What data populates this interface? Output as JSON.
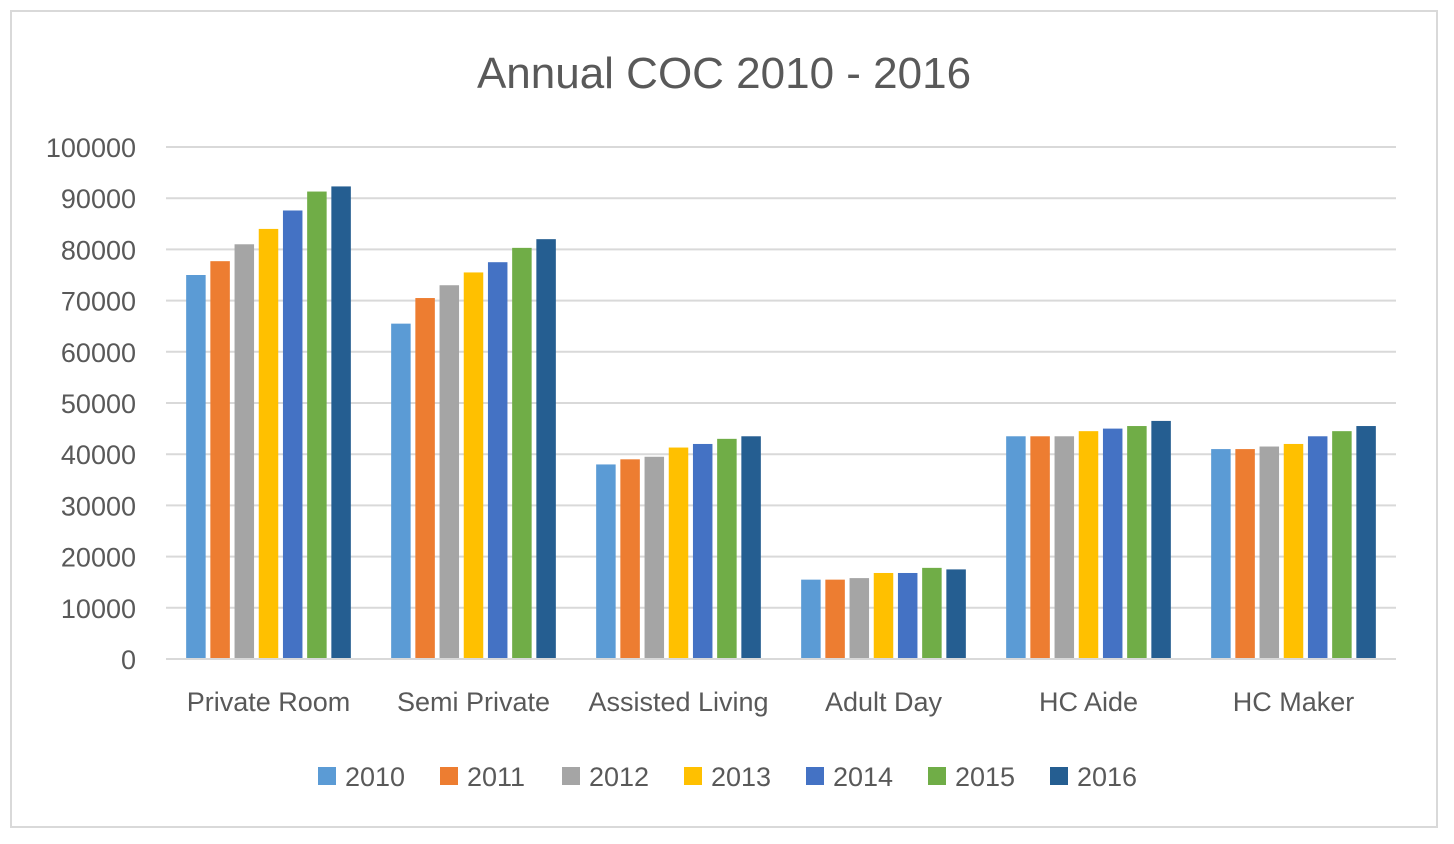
{
  "chart_data": {
    "type": "bar",
    "title": "Annual COC 2010 - 2016",
    "xlabel": "",
    "ylabel": "",
    "ylim": [
      0,
      100000
    ],
    "yticks": [
      0,
      10000,
      20000,
      30000,
      40000,
      50000,
      60000,
      70000,
      80000,
      90000,
      100000
    ],
    "grid": true,
    "legend_position": "bottom",
    "categories": [
      "Private Room",
      "Semi Private",
      "Assisted Living",
      "Adult Day",
      "HC Aide",
      "HC Maker"
    ],
    "series": [
      {
        "name": "2010",
        "color": "#5b9bd5",
        "values": [
          75000,
          65500,
          38000,
          15500,
          43500,
          41000
        ]
      },
      {
        "name": "2011",
        "color": "#ed7d31",
        "values": [
          77700,
          70500,
          39000,
          15500,
          43500,
          41000
        ]
      },
      {
        "name": "2012",
        "color": "#a5a5a5",
        "values": [
          81000,
          73000,
          39500,
          15800,
          43500,
          41500
        ]
      },
      {
        "name": "2013",
        "color": "#ffc000",
        "values": [
          84000,
          75500,
          41300,
          16800,
          44500,
          42000
        ]
      },
      {
        "name": "2014",
        "color": "#4472c4",
        "values": [
          87600,
          77500,
          42000,
          16800,
          45000,
          43500
        ]
      },
      {
        "name": "2015",
        "color": "#70ad47",
        "values": [
          91300,
          80300,
          43000,
          17800,
          45500,
          44500
        ]
      },
      {
        "name": "2016",
        "color": "#255e91",
        "values": [
          92300,
          82000,
          43500,
          17500,
          46500,
          45500
        ]
      }
    ]
  }
}
